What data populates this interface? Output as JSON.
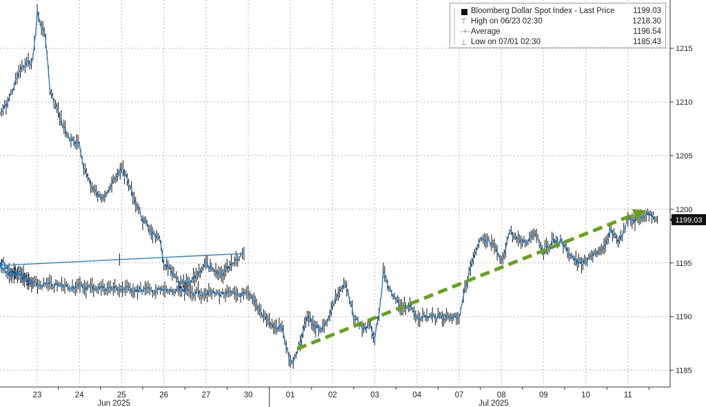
{
  "chart_data": {
    "type": "line",
    "style": "OHLC bars (black) with blue close line",
    "colors": {
      "price": "#2f7fc1",
      "bars": "#111111",
      "trend": "#67a11a",
      "grid": "#b5b5b5"
    },
    "x_tick_labels": [
      "23",
      "24",
      "25",
      "26",
      "27",
      "30",
      "01",
      "02",
      "03",
      "04",
      "07",
      "08",
      "09",
      "10",
      "11"
    ],
    "month_labels": [
      {
        "label": "Jun 2025",
        "at": "24"
      },
      {
        "label": "Jul 2025",
        "at": "07"
      }
    ],
    "y_ticks": [
      1185,
      1190,
      1195,
      1200,
      1205,
      1210,
      1215
    ],
    "ylim": [
      1183.5,
      1219.5
    ],
    "last_price_tag": "1199.03",
    "legend": {
      "title": "Bloomberg Dollar Spot Index - Last Price",
      "last": "1199.03",
      "rows": [
        {
          "name": "High on 06/23 02:30",
          "value": "1218.30"
        },
        {
          "name": "Average",
          "value": "1196.54"
        },
        {
          "name": "Low on 07/01 02:30",
          "value": "1185.43"
        }
      ]
    },
    "trend_arrow": {
      "from": [
        "01",
        1187
      ],
      "to": [
        "11",
        1199.9
      ]
    },
    "series": [
      {
        "name": "Bloomberg Dollar Spot Index - Last Price",
        "x": [
          "22",
          "22.3",
          "22.6",
          "22.9",
          "23",
          "23.1",
          "23.2",
          "23.3",
          "23.5",
          "23.7",
          "23.9",
          "24",
          "24.1",
          "24.3",
          "24.5",
          "24.7",
          "24.9",
          "25",
          "25.1",
          "25.3",
          "25.5",
          "25.7",
          "25.9",
          "26",
          "26.2",
          "26.4",
          "26.6",
          "26.8",
          "27",
          "27.2",
          "27.4",
          "27.6",
          "27.9",
          "28",
          "28.2",
          "28.4",
          "28.6",
          "28.8",
          "28.9",
          "29",
          "29.3",
          "29.6",
          "29.9",
          "30",
          "30.2",
          "30.4",
          "30.6",
          "30.8",
          "01",
          "01.1",
          "01.2",
          "01.4",
          "01.6",
          "01.8",
          "02",
          "02.1",
          "02.3",
          "02.5",
          "02.7",
          "02.9",
          "03",
          "03.1",
          "03.2",
          "03.4",
          "03.6",
          "03.8",
          "04",
          "04.2",
          "04.4",
          "04.6",
          "04.8",
          "07",
          "07.1",
          "07.3",
          "07.5",
          "07.7",
          "07.9",
          "08",
          "08.2",
          "08.4",
          "08.6",
          "08.8",
          "09",
          "09.2",
          "09.4",
          "09.6",
          "09.8",
          "10",
          "10.2",
          "10.4",
          "10.6",
          "10.8",
          "11",
          "11.2",
          "11.4",
          "11.6",
          "11.7"
        ],
        "y": [
          1208,
          1210,
          1213,
          1214,
          1218.3,
          1217,
          1216,
          1211,
          1209,
          1207,
          1206,
          1206,
          1204,
          1202,
          1201,
          1202,
          1203,
          1204,
          1203,
          1201,
          1199,
          1198,
          1197,
          1195,
          1194,
          1193,
          1193,
          1194,
          1195,
          1194,
          1194,
          1195,
          1196,
          1195,
          1195,
          1194,
          1194,
          1193,
          1193,
          1195,
          1194,
          1194,
          1193,
          1192,
          1191,
          1190,
          1189,
          1189,
          1185.6,
          1186,
          1187,
          1190,
          1189,
          1189,
          1191,
          1192,
          1193,
          1190,
          1189,
          1189,
          1188,
          1190,
          1194,
          1192,
          1191,
          1191,
          1190,
          1190,
          1190,
          1190,
          1190,
          1190,
          1192,
          1195,
          1197,
          1197,
          1196,
          1195,
          1198,
          1197,
          1197,
          1198,
          1196,
          1197,
          1197,
          1196,
          1195,
          1195,
          1196,
          1196,
          1198,
          1197,
          1199,
          1199,
          1199.5,
          1199.5,
          1199.03
        ]
      }
    ]
  }
}
